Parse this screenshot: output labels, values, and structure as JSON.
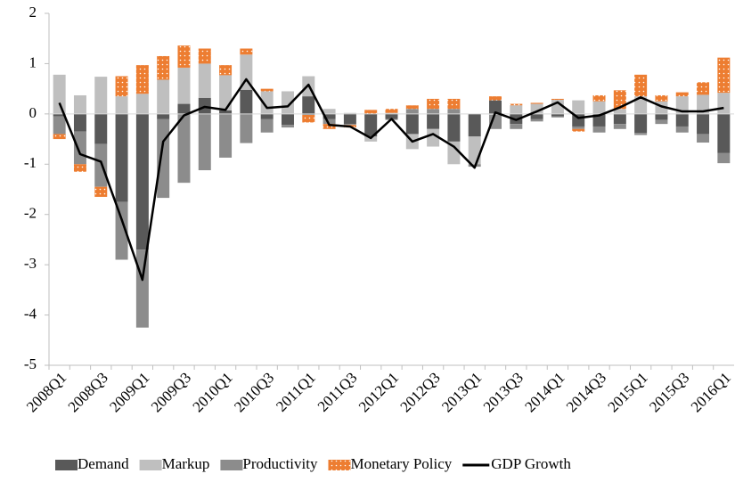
{
  "chart_data": {
    "type": "bar",
    "categories": [
      "2008Q1",
      null,
      "2008Q3",
      null,
      "2009Q1",
      null,
      "2009Q3",
      null,
      "2010Q1",
      null,
      "2010Q3",
      null,
      "2011Q1",
      null,
      "2011Q3",
      null,
      "2012Q1",
      null,
      "2012Q3",
      null,
      "2013Q1",
      null,
      "2013Q3",
      null,
      "2014Q1",
      null,
      "2014Q3",
      null,
      "2015Q1",
      null,
      "2015Q3",
      null,
      "2016Q1"
    ],
    "series": [
      {
        "name": "Demand",
        "color": "#595959",
        "values": [
          -0.05,
          -0.35,
          -0.6,
          -1.75,
          -2.7,
          -0.1,
          0.2,
          0.32,
          0.07,
          0.48,
          -0.1,
          -0.22,
          0.35,
          -0.1,
          -0.2,
          -0.45,
          -0.1,
          -0.4,
          -0.3,
          -0.55,
          -0.45,
          0.27,
          -0.2,
          -0.1,
          -0.05,
          -0.25,
          -0.25,
          -0.2,
          -0.38,
          -0.12,
          -0.25,
          -0.4,
          -0.78
        ]
      },
      {
        "name": "Markup",
        "color": "#bfbfbf",
        "values": [
          0.78,
          0.37,
          0.74,
          0.35,
          0.4,
          0.68,
          0.72,
          0.68,
          0.7,
          0.7,
          0.45,
          0.45,
          0.4,
          0.1,
          0.02,
          -0.1,
          0.02,
          -0.3,
          -0.35,
          -0.45,
          -0.55,
          -0.02,
          0.17,
          0.2,
          0.28,
          0.27,
          0.25,
          0.1,
          0.35,
          0.25,
          0.35,
          0.38,
          0.42
        ]
      },
      {
        "name": "Productivity",
        "color": "#8c8c8c",
        "values": [
          -0.35,
          -0.65,
          -0.85,
          -1.15,
          -1.55,
          -1.57,
          -1.37,
          -1.12,
          -0.87,
          -0.58,
          -0.27,
          -0.05,
          -0.02,
          -0.1,
          -0.02,
          0.0,
          -0.02,
          0.1,
          0.1,
          0.1,
          -0.05,
          -0.28,
          -0.1,
          -0.05,
          -0.02,
          -0.05,
          -0.12,
          -0.1,
          -0.04,
          -0.08,
          -0.12,
          -0.17,
          -0.2
        ]
      },
      {
        "name": "Monetary Policy",
        "color": "#ed7d31",
        "values": [
          -0.1,
          -0.15,
          -0.2,
          0.4,
          0.57,
          0.47,
          0.44,
          0.3,
          0.2,
          0.12,
          0.05,
          0.0,
          -0.15,
          -0.1,
          -0.05,
          0.08,
          0.08,
          0.07,
          0.2,
          0.2,
          0.0,
          0.08,
          0.03,
          0.02,
          0.02,
          -0.05,
          0.12,
          0.37,
          0.43,
          0.12,
          0.08,
          0.25,
          0.7
        ]
      },
      {
        "name": "GDP Growth",
        "color": "#000000",
        "type": "line",
        "values": [
          0.22,
          -0.8,
          -0.95,
          -2.1,
          -3.3,
          -0.55,
          -0.03,
          0.14,
          0.08,
          0.69,
          0.12,
          0.15,
          0.58,
          -0.22,
          -0.25,
          -0.48,
          -0.1,
          -0.55,
          -0.4,
          -0.65,
          -1.07,
          0.03,
          -0.12,
          0.05,
          0.23,
          -0.08,
          -0.03,
          0.13,
          0.33,
          0.15,
          0.05,
          0.05,
          0.12
        ]
      }
    ],
    "ylim": [
      -5,
      2
    ],
    "yticks": [
      -5,
      -4,
      -3,
      -2,
      -1,
      0,
      1,
      2
    ],
    "grid": false,
    "legend": "bottom"
  }
}
